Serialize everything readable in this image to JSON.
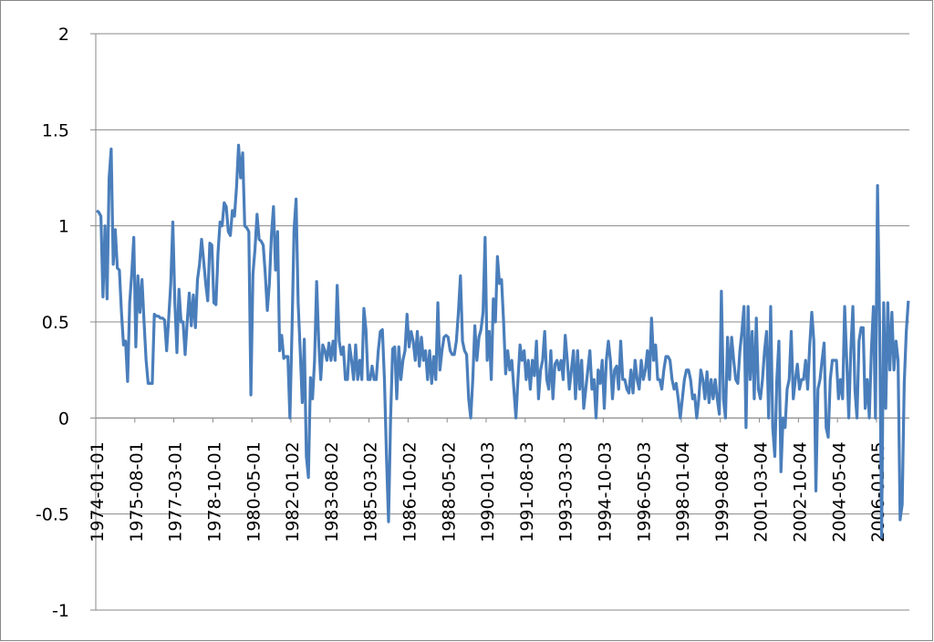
{
  "chart_data": {
    "type": "line",
    "grid": true,
    "ylim": [
      -1,
      2
    ],
    "yticks": [
      -1,
      -0.5,
      0,
      0.5,
      1,
      1.5,
      2
    ],
    "categories": [
      "1974-01-01",
      null,
      null,
      null,
      null,
      null,
      null,
      null,
      null,
      null,
      null,
      null,
      null,
      null,
      null,
      null,
      null,
      null,
      null,
      "1975-08-01",
      null,
      null,
      null,
      null,
      null,
      null,
      null,
      null,
      null,
      null,
      null,
      null,
      null,
      null,
      null,
      null,
      null,
      null,
      "1977-03-01",
      null,
      null,
      null,
      null,
      null,
      null,
      null,
      null,
      null,
      null,
      null,
      null,
      null,
      null,
      null,
      null,
      null,
      null,
      "1978-10-01",
      null,
      null,
      null,
      null,
      null,
      null,
      null,
      null,
      null,
      null,
      null,
      null,
      null,
      null,
      null,
      null,
      null,
      null,
      "1980-05-01",
      null,
      null,
      null,
      null,
      null,
      null,
      null,
      null,
      null,
      null,
      null,
      null,
      null,
      null,
      null,
      null,
      null,
      null,
      "1982-01-02",
      null,
      null,
      null,
      null,
      null,
      null,
      null,
      null,
      null,
      null,
      null,
      null,
      null,
      null,
      null,
      null,
      null,
      null,
      "1983-08-02",
      null,
      null,
      null,
      null,
      null,
      null,
      null,
      null,
      null,
      null,
      null,
      null,
      null,
      null,
      null,
      null,
      null,
      null,
      "1985-03-02",
      null,
      null,
      null,
      null,
      null,
      null,
      null,
      null,
      null,
      null,
      null,
      null,
      null,
      null,
      null,
      null,
      null,
      null,
      "1986-10-02",
      null,
      null,
      null,
      null,
      null,
      null,
      null,
      null,
      null,
      null,
      null,
      null,
      null,
      null,
      null,
      null,
      null,
      null,
      "1988-05-02",
      null,
      null,
      null,
      null,
      null,
      null,
      null,
      null,
      null,
      null,
      null,
      null,
      null,
      null,
      null,
      null,
      null,
      null,
      "1990-01-03",
      null,
      null,
      null,
      null,
      null,
      null,
      null,
      null,
      null,
      null,
      null,
      null,
      null,
      null,
      null,
      null,
      null,
      null,
      "1991-08-03",
      null,
      null,
      null,
      null,
      null,
      null,
      null,
      null,
      null,
      null,
      null,
      null,
      null,
      null,
      null,
      null,
      null,
      null,
      "1993-03-03",
      null,
      null,
      null,
      null,
      null,
      null,
      null,
      null,
      null,
      null,
      null,
      null,
      null,
      null,
      null,
      null,
      null,
      null,
      "1994-10-03",
      null,
      null,
      null,
      null,
      null,
      null,
      null,
      null,
      null,
      null,
      null,
      null,
      null,
      null,
      null,
      null,
      null,
      null,
      "1996-05-03",
      null,
      null,
      null,
      null,
      null,
      null,
      null,
      null,
      null,
      null,
      null,
      null,
      null,
      null,
      null,
      null,
      null,
      null,
      "1998-01-04",
      null,
      null,
      null,
      null,
      null,
      null,
      null,
      null,
      null,
      null,
      null,
      null,
      null,
      null,
      null,
      null,
      null,
      null,
      "1999-08-04",
      null,
      null,
      null,
      null,
      null,
      null,
      null,
      null,
      null,
      null,
      null,
      null,
      null,
      null,
      null,
      null,
      null,
      null,
      "2001-03-04",
      null,
      null,
      null,
      null,
      null,
      null,
      null,
      null,
      null,
      null,
      null,
      null,
      null,
      null,
      null,
      null,
      null,
      null,
      "2002-10-04",
      null,
      null,
      null,
      null,
      null,
      null,
      null,
      null,
      null,
      null,
      null,
      null,
      null,
      null,
      null,
      null,
      null,
      null,
      "2004-05-04",
      null,
      null,
      null,
      null,
      null,
      null,
      null,
      null,
      null,
      null,
      null,
      null,
      null,
      null,
      null,
      null,
      null,
      null,
      "2006-01-05",
      null,
      null,
      null,
      null,
      null,
      null,
      null,
      null,
      null,
      null,
      null,
      null,
      null,
      null,
      null
    ],
    "series": [
      {
        "color": "#4a7ebb",
        "values": [
          1.08,
          1.07,
          1.05,
          0.63,
          1.0,
          0.62,
          1.25,
          1.4,
          0.8,
          0.98,
          0.78,
          0.77,
          0.55,
          0.38,
          0.4,
          0.19,
          0.6,
          0.75,
          0.94,
          0.37,
          0.74,
          0.55,
          0.72,
          0.5,
          0.3,
          0.18,
          0.18,
          0.18,
          0.54,
          0.53,
          0.53,
          0.52,
          0.52,
          0.51,
          0.35,
          0.52,
          0.7,
          1.02,
          0.6,
          0.34,
          0.67,
          0.5,
          0.5,
          0.33,
          0.5,
          0.65,
          0.48,
          0.64,
          0.47,
          0.72,
          0.8,
          0.93,
          0.82,
          0.7,
          0.61,
          0.91,
          0.9,
          0.6,
          0.59,
          0.86,
          1.02,
          1.0,
          1.12,
          1.1,
          0.97,
          0.95,
          1.08,
          1.05,
          1.2,
          1.42,
          1.25,
          1.38,
          1.0,
          0.99,
          0.97,
          0.12,
          0.75,
          0.88,
          1.06,
          0.93,
          0.92,
          0.9,
          0.75,
          0.56,
          0.7,
          0.95,
          1.1,
          0.77,
          0.97,
          0.35,
          0.43,
          0.31,
          0.32,
          0.32,
          0.0,
          0.45,
          0.98,
          1.14,
          0.6,
          0.35,
          0.08,
          0.41,
          -0.2,
          -0.31,
          0.21,
          0.1,
          0.3,
          0.71,
          0.4,
          0.2,
          0.38,
          0.35,
          0.3,
          0.39,
          0.3,
          0.4,
          0.3,
          0.69,
          0.4,
          0.33,
          0.37,
          0.2,
          0.2,
          0.38,
          0.3,
          0.2,
          0.38,
          0.2,
          0.3,
          0.2,
          0.57,
          0.46,
          0.2,
          0.2,
          0.27,
          0.2,
          0.2,
          0.35,
          0.45,
          0.46,
          0.2,
          -0.2,
          -0.54,
          0.0,
          0.36,
          0.37,
          0.1,
          0.37,
          0.2,
          0.3,
          0.35,
          0.54,
          0.37,
          0.45,
          0.4,
          0.3,
          0.45,
          0.27,
          0.42,
          0.3,
          0.35,
          0.2,
          0.35,
          0.18,
          0.32,
          0.2,
          0.6,
          0.25,
          0.35,
          0.42,
          0.43,
          0.42,
          0.35,
          0.33,
          0.33,
          0.4,
          0.55,
          0.74,
          0.4,
          0.35,
          0.33,
          0.1,
          0.0,
          0.2,
          0.48,
          0.3,
          0.42,
          0.46,
          0.55,
          0.94,
          0.3,
          0.45,
          0.2,
          0.62,
          0.5,
          0.84,
          0.7,
          0.72,
          0.5,
          0.23,
          0.35,
          0.25,
          0.3,
          0.15,
          0.0,
          0.2,
          0.38,
          0.3,
          0.35,
          0.2,
          0.3,
          0.15,
          0.3,
          0.22,
          0.4,
          0.1,
          0.25,
          0.3,
          0.45,
          0.2,
          0.15,
          0.35,
          0.1,
          0.28,
          0.3,
          0.25,
          0.3,
          0.2,
          0.43,
          0.3,
          0.15,
          0.25,
          0.35,
          0.1,
          0.35,
          0.15,
          0.3,
          0.05,
          0.15,
          0.25,
          0.35,
          0.15,
          0.2,
          0.0,
          0.25,
          0.18,
          0.3,
          0.05,
          0.3,
          0.4,
          0.3,
          0.1,
          0.25,
          0.27,
          0.15,
          0.4,
          0.2,
          0.2,
          0.15,
          0.13,
          0.25,
          0.13,
          0.3,
          0.2,
          0.15,
          0.3,
          0.2,
          0.25,
          0.35,
          0.2,
          0.52,
          0.3,
          0.38,
          0.2,
          0.2,
          0.15,
          0.25,
          0.32,
          0.32,
          0.3,
          0.2,
          0.15,
          0.18,
          0.1,
          0.0,
          0.1,
          0.2,
          0.25,
          0.25,
          0.2,
          0.1,
          0.12,
          0.0,
          0.1,
          0.25,
          0.2,
          0.1,
          0.24,
          0.08,
          0.2,
          0.1,
          0.2,
          0.1,
          0.02,
          0.66,
          0.1,
          0.0,
          0.42,
          0.2,
          0.42,
          0.3,
          0.2,
          0.18,
          0.35,
          0.45,
          0.58,
          -0.05,
          0.58,
          0.2,
          0.45,
          0.1,
          0.52,
          0.15,
          0.1,
          0.2,
          0.35,
          0.45,
          0.0,
          0.58,
          -0.05,
          -0.2,
          0.2,
          0.4,
          -0.28,
          0.0,
          -0.05,
          0.15,
          0.2,
          0.45,
          0.1,
          0.2,
          0.28,
          0.15,
          0.2,
          0.2,
          0.3,
          0.15,
          0.38,
          0.55,
          0.4,
          -0.38,
          0.15,
          0.2,
          0.3,
          0.39,
          -0.05,
          -0.1,
          0.2,
          0.3,
          0.3,
          0.3,
          0.1,
          0.2,
          0.1,
          0.58,
          0.3,
          0.0,
          0.35,
          0.58,
          0.15,
          0.0,
          0.4,
          0.47,
          0.47,
          0.05,
          0.2,
          0.0,
          0.35,
          0.58,
          0.0,
          1.21,
          0.5,
          -0.62,
          0.6,
          0.05,
          0.6,
          0.25,
          0.55,
          0.25,
          0.4,
          0.3,
          -0.53,
          -0.45,
          0.18,
          0.45,
          0.61
        ]
      }
    ]
  }
}
